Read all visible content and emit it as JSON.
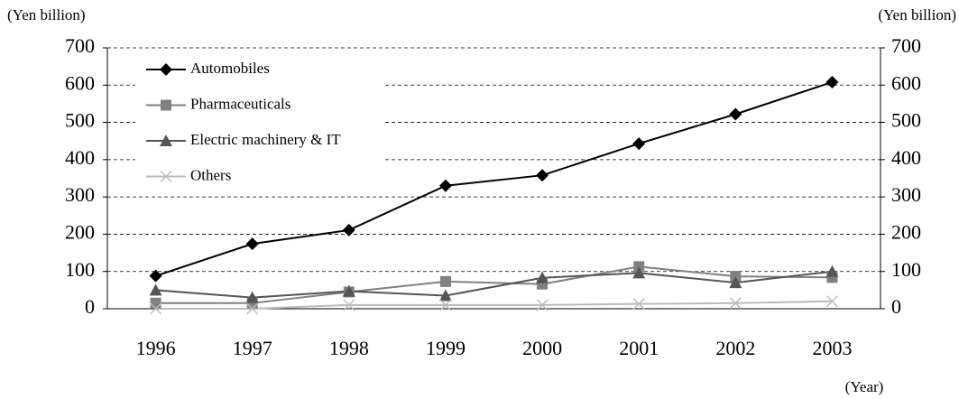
{
  "chart_data": {
    "type": "line",
    "y_label": "(Yen billion)",
    "y2_label": "(Yen billion)",
    "x_label": "(Year)",
    "categories": [
      "1996",
      "1997",
      "1998",
      "1999",
      "2000",
      "2001",
      "2002",
      "2003"
    ],
    "series": [
      {
        "name": "Automobiles",
        "color": "#000000",
        "marker": "diamond",
        "values": [
          88,
          174,
          211,
          330,
          358,
          443,
          522,
          608
        ]
      },
      {
        "name": "Pharmaceuticals",
        "color": "#808080",
        "marker": "square",
        "values": [
          15,
          15,
          45,
          73,
          66,
          113,
          87,
          84
        ]
      },
      {
        "name": "Electric machinery & IT",
        "color": "#555555",
        "marker": "triangle",
        "values": [
          50,
          30,
          47,
          35,
          83,
          96,
          70,
          100
        ]
      },
      {
        "name": "Others",
        "color": "#bbbbbb",
        "marker": "x",
        "values": [
          0,
          0,
          10,
          10,
          10,
          13,
          15,
          20
        ]
      }
    ],
    "ylim": [
      0,
      700
    ],
    "yticks": [
      0,
      100,
      200,
      300,
      400,
      500,
      600,
      700
    ],
    "y2lim": [
      0,
      700
    ],
    "y2ticks": [
      0,
      100,
      200,
      300,
      400,
      500,
      600,
      700
    ],
    "grid": true,
    "legend": "upper left"
  }
}
